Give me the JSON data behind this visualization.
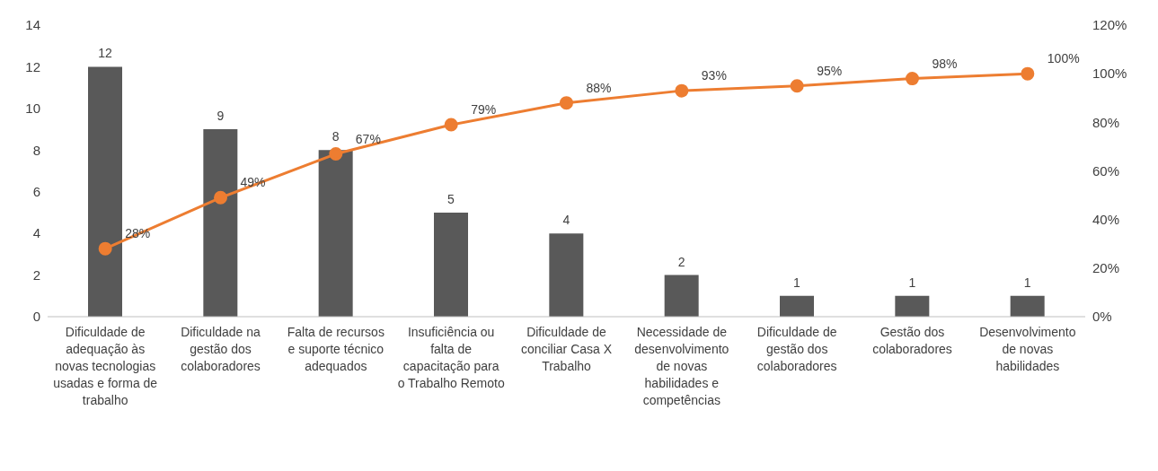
{
  "chart_data": {
    "type": "bar",
    "categories": [
      "Dificuldade de adequação às novas tecnologias usadas e forma de trabalho",
      "Dificuldade na gestão dos colaboradores",
      "Falta de recursos e suporte técnico adequados",
      "Insuficiência ou falta de capacitação para o Trabalho Remoto",
      "Dificuldade de conciliar Casa X Trabalho",
      "Necessidade de desenvolvimento de novas habilidades e competências",
      "Dificuldade de gestão dos colaboradores",
      "Gestão dos colaboradores",
      "Desenvolvimento de novas habilidades"
    ],
    "series": [
      {
        "color": "#595959",
        "values": [
          12,
          9,
          8,
          5,
          4,
          2,
          1,
          1,
          1
        ],
        "value_labels": [
          "12",
          "9",
          "8",
          "5",
          "4",
          "2",
          "1",
          "1",
          "1"
        ]
      },
      {
        "type": "line",
        "axis": "y2",
        "color": "#ed7d31",
        "marker": "circle",
        "values": [
          28,
          49,
          67,
          79,
          88,
          93,
          95,
          98,
          100
        ],
        "value_labels": [
          "28%",
          "49%",
          "67%",
          "79%",
          "88%",
          "93%",
          "95%",
          "98%",
          "100%"
        ]
      }
    ],
    "ylim": [
      0,
      14
    ],
    "yticks": [
      0,
      2,
      4,
      6,
      8,
      10,
      12,
      14
    ],
    "y2lim": [
      0,
      120
    ],
    "y2ticks": [
      {
        "value": 0,
        "label": "0%"
      },
      {
        "value": 20,
        "label": "20%"
      },
      {
        "value": 40,
        "label": "40%"
      },
      {
        "value": 60,
        "label": "60%"
      },
      {
        "value": 80,
        "label": "80%"
      },
      {
        "value": 100,
        "label": "100%"
      },
      {
        "value": 120,
        "label": "120%"
      }
    ]
  }
}
